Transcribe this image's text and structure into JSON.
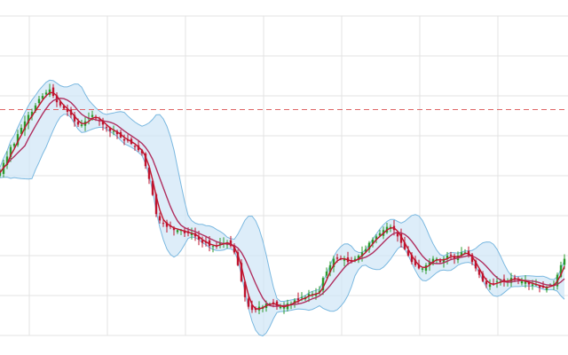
{
  "chart_data": {
    "type": "candlestick",
    "title": "",
    "xlabel": "",
    "ylabel": "",
    "grid": true,
    "legend": "none",
    "ylim": [
      0,
      100
    ],
    "x_range": [
      0,
      175
    ],
    "reference_line": {
      "value": 70.7,
      "style": "dashed",
      "color": "#e06666"
    },
    "colors": {
      "up": "#2e9b2e",
      "down": "#c0152f",
      "ma_fast": "#c0152f",
      "ma_slow": "#b03060",
      "band_stroke": "#7ab8e0",
      "band_fill": "#cfe6f7",
      "grid": "#e3e3e3",
      "background": "#ffffff"
    },
    "closes": [
      51,
      54,
      56,
      59,
      60,
      63,
      65,
      67,
      69,
      70,
      72,
      74,
      75,
      76,
      77,
      75,
      73,
      72,
      71,
      70,
      69,
      67,
      66,
      66,
      67,
      68,
      69,
      68,
      67,
      66,
      65,
      64,
      64,
      63,
      62,
      61,
      61,
      60,
      59,
      58,
      57,
      53,
      49,
      44,
      38,
      36,
      35,
      34,
      34,
      33,
      33,
      33,
      32,
      32,
      32,
      31,
      30,
      29,
      29,
      28,
      28,
      28,
      29,
      29,
      29,
      28,
      26,
      22,
      17,
      12,
      9,
      8,
      8,
      9,
      9,
      10,
      10,
      10,
      9,
      9,
      9,
      10,
      10,
      11,
      11,
      12,
      12,
      13,
      13,
      13,
      14,
      18,
      20,
      22,
      24,
      24,
      24,
      24,
      23,
      23,
      24,
      25,
      26,
      27,
      29,
      30,
      31,
      32,
      33,
      34,
      34,
      33,
      31,
      29,
      27,
      25,
      23,
      22,
      21,
      21,
      22,
      23,
      24,
      24,
      23,
      24,
      25,
      25,
      24,
      25,
      26,
      26,
      25,
      23,
      21,
      19,
      17,
      16,
      16,
      16,
      17,
      17,
      17,
      17,
      18,
      18,
      17,
      17,
      17,
      16,
      16,
      16,
      15,
      15,
      15,
      16,
      16,
      19,
      22,
      24
    ]
  }
}
